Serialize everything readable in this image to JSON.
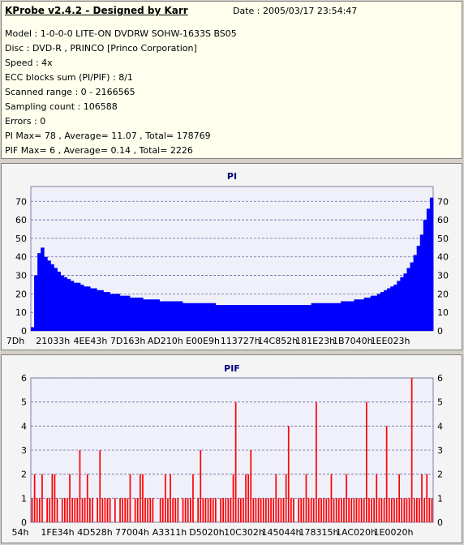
{
  "header": {
    "title": "KProbe v2.4.2 - Designed by Karr",
    "date": "Date : 2005/03/17 23:54:47",
    "lines": [
      "Model : 1-0-0-0 LITE-ON DVDRW SOHW-1633S BS05",
      "Disc : DVD-R , PRINCO [Princo Corporation]",
      "Speed : 4x",
      "ECC blocks sum (PI/PIF) : 8/1",
      "Scanned range : 0 - 2166565",
      "Sampling count : 106588",
      "Errors : 0",
      "PI Max= 78 , Average= 11.07 , Total= 178769",
      "PIF Max= 6 , Average= 0.14 , Total= 2226"
    ]
  },
  "colors": {
    "panel_bg": "#ffffee",
    "plot_bg": "#f0f0fa",
    "pi_fill": "#0000ff",
    "pif_fill": "#ff0000",
    "grid": "#6a6aa0",
    "title": "#000080"
  },
  "chart_data": [
    {
      "type": "area",
      "title": "PI",
      "ylim": [
        0,
        78
      ],
      "yticks": [
        0,
        10,
        20,
        30,
        40,
        50,
        60,
        70
      ],
      "xtick_labels": [
        "7Dh",
        "21033h",
        "4EE43h",
        "7D163h",
        "AD210h",
        "E00E9h",
        "113727h",
        "14C852h",
        "181E23h",
        "1B7040h",
        "1EE023h"
      ],
      "grid": "dashed horizontal",
      "series": [
        {
          "values": [
            2,
            30,
            42,
            45,
            40,
            38,
            36,
            34,
            32,
            30,
            29,
            28,
            27,
            26,
            26,
            25,
            24,
            24,
            23,
            23,
            22,
            22,
            21,
            21,
            20,
            20,
            20,
            19,
            19,
            19,
            18,
            18,
            18,
            18,
            17,
            17,
            17,
            17,
            17,
            16,
            16,
            16,
            16,
            16,
            16,
            16,
            15,
            15,
            15,
            15,
            15,
            15,
            15,
            15,
            15,
            15,
            14,
            14,
            14,
            14,
            14,
            14,
            14,
            14,
            14,
            14,
            14,
            14,
            14,
            14,
            14,
            14,
            14,
            14,
            14,
            14,
            14,
            14,
            14,
            14,
            14,
            14,
            14,
            14,
            14,
            15,
            15,
            15,
            15,
            15,
            15,
            15,
            15,
            15,
            16,
            16,
            16,
            16,
            17,
            17,
            17,
            18,
            18,
            19,
            19,
            20,
            21,
            22,
            23,
            24,
            25,
            27,
            29,
            31,
            34,
            37,
            41,
            46,
            52,
            60,
            66,
            72
          ]
        }
      ]
    },
    {
      "type": "bar",
      "title": "PIF",
      "ylim": [
        0,
        6
      ],
      "yticks": [
        0,
        1,
        2,
        3,
        4,
        5,
        6
      ],
      "xtick_labels": [
        "54h",
        "1FE34h",
        "4D528h",
        "77004h",
        "A3311h",
        "D5020h",
        "10C302h",
        "145044h",
        "178315h",
        "1AC020h",
        "1E0020h"
      ],
      "grid": "dashed horizontal",
      "series": [
        {
          "values": [
            1,
            2,
            1,
            1,
            2,
            0,
            1,
            1,
            2,
            2,
            1,
            0,
            1,
            1,
            1,
            2,
            1,
            1,
            1,
            3,
            1,
            1,
            2,
            1,
            1,
            0,
            1,
            3,
            1,
            1,
            1,
            1,
            0,
            1,
            0,
            1,
            1,
            1,
            1,
            2,
            0,
            1,
            1,
            2,
            2,
            1,
            1,
            1,
            1,
            0,
            0,
            1,
            1,
            2,
            1,
            2,
            1,
            1,
            1,
            0,
            1,
            1,
            1,
            1,
            2,
            0,
            1,
            3,
            1,
            1,
            1,
            1,
            1,
            1,
            0,
            1,
            1,
            1,
            1,
            1,
            2,
            5,
            1,
            1,
            1,
            2,
            2,
            3,
            1,
            1,
            1,
            1,
            1,
            1,
            1,
            1,
            1,
            2,
            1,
            1,
            1,
            2,
            4,
            1,
            1,
            0,
            1,
            1,
            1,
            2,
            1,
            1,
            1,
            5,
            1,
            1,
            1,
            1,
            1,
            2,
            1,
            1,
            1,
            1,
            1,
            2,
            1,
            1,
            1,
            1,
            1,
            1,
            1,
            5,
            1,
            1,
            1,
            2,
            1,
            1,
            1,
            4,
            1,
            1,
            1,
            1,
            2,
            1,
            1,
            1,
            1,
            6,
            1,
            1,
            1,
            2,
            1,
            2,
            1,
            1
          ]
        }
      ]
    }
  ]
}
